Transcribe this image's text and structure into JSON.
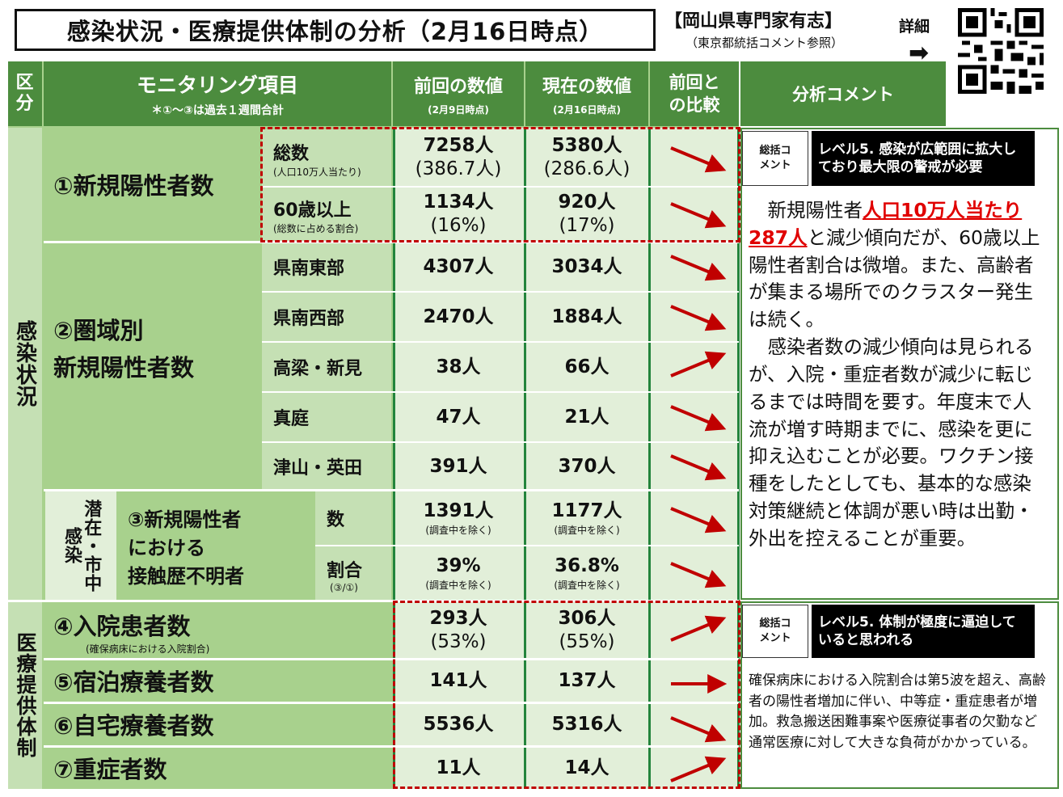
{
  "title": "感染状況・医療提供体制の分析（2月16日時点）",
  "expert": {
    "line1": "【岡山県専門家有志】",
    "line2": "（東京都統括コメント参照）",
    "detail": "詳細"
  },
  "header": {
    "category": "区分",
    "item": "モニタリング項目",
    "item_note": "＊①～③は過去１週間合計",
    "prev": "前回の数値",
    "prev_date": "(2月9日時点)",
    "curr": "現在の数値",
    "curr_date": "(2月16日時点)",
    "compare": "前回との比較",
    "analysis": "分析コメント"
  },
  "sections": {
    "infection": "感染状況",
    "medical": "医療提供体制",
    "latent": "潜在・市中感染"
  },
  "rows": {
    "r1_name": "①新規陽性者数",
    "r1a_label": "総数",
    "r1a_sub": "(人口10万人当たり)",
    "r1a_prev": "7258人",
    "r1a_prev2": "(386.7人)",
    "r1a_curr": "5380人",
    "r1a_curr2": "(286.6人)",
    "r1b_label": "60歳以上",
    "r1b_sub": "(総数に占める割合)",
    "r1b_prev": "1134人",
    "r1b_prev2": "(16%)",
    "r1b_curr": "920人",
    "r1b_curr2": "(17%)",
    "r2_name1": "②圏域別",
    "r2_name2": "新規陽性者数",
    "areas": [
      {
        "name": "県南東部",
        "prev": "4307人",
        "curr": "3034人"
      },
      {
        "name": "県南西部",
        "prev": "2470人",
        "curr": "1884人"
      },
      {
        "name": "高梁・新見",
        "prev": "38人",
        "curr": "66人"
      },
      {
        "name": "真庭",
        "prev": "47人",
        "curr": "21人"
      },
      {
        "name": "津山・英田",
        "prev": "391人",
        "curr": "370人"
      }
    ],
    "r3_name1": "③新規陽性者",
    "r3_name2": "における",
    "r3_name3": "接触歴不明者",
    "r3a_label": "数",
    "r3a_prev": "1391人",
    "r3a_curr": "1177人",
    "r3b_label": "割合",
    "r3b_sub": "(③/①)",
    "r3b_prev": "39%",
    "r3b_curr": "36.8%",
    "r3_note": "(調査中を除く)",
    "r4_name": "④入院患者数",
    "r4_sub": "(確保病床における入院割合)",
    "r4_prev": "293人",
    "r4_prev2": "(53%)",
    "r4_curr": "306人",
    "r4_curr2": "(55%)",
    "r5_name": "⑤宿泊療養者数",
    "r5_prev": "141人",
    "r5_curr": "137人",
    "r6_name": "⑥自宅療養者数",
    "r6_prev": "5536人",
    "r6_curr": "5316人",
    "r7_name": "⑦重症者数",
    "r7_prev": "11人",
    "r7_curr": "14人"
  },
  "trends": [
    "down",
    "down",
    "down",
    "down",
    "up",
    "down",
    "down",
    "down",
    "down",
    "up",
    "flat",
    "down",
    "up"
  ],
  "summary": {
    "label": "総括コメント",
    "level_infection": "レベル5. 感染が広範囲に拡大しており最大限の警戒が必要",
    "level_medical": "レベル5. 体制が極度に逼迫していると思われる"
  },
  "comment1": {
    "p1_pre": "新規陽性者",
    "p1_red": "人口10万人当たり287人",
    "p1_post": "と減少傾向だが、60歳以上陽性者割合は微増。また、高齢者が集まる場所でのクラスター発生は続く。",
    "p2": "感染者数の減少傾向は見られるが、入院・重症者数が減少に転じるまでは時間を要す。年度末で人流が増す時期までに、感染を更に抑え込むことが必要。ワクチン接種をしたとしても、基本的な感染対策継続と体調が悪い時は出勤・外出を控えることが重要。"
  },
  "comment2": "確保病床における入院割合は第5波を超え、高齢者の陽性者増加に伴い、中等症・重症患者が増加。救急搬送困難事案や医療従事者の欠勤など通常医療に対して大きな負荷がかかっている。",
  "colors": {
    "header": "#4c8c3e",
    "arrow": "#c00000",
    "dash": "#c00000"
  }
}
